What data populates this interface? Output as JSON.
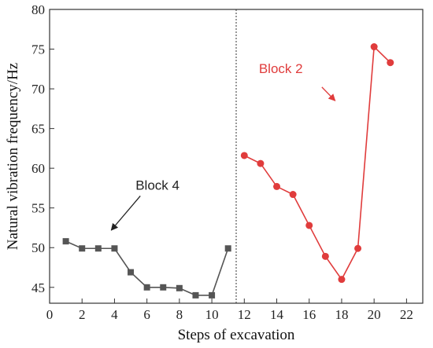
{
  "chart_data": {
    "type": "line",
    "xlabel": "Steps of excavation",
    "ylabel": "Natural vibration frequency/Hz",
    "xlim": [
      0,
      23
    ],
    "ylim": [
      43,
      80
    ],
    "xticks": [
      0,
      2,
      4,
      6,
      8,
      10,
      12,
      14,
      16,
      18,
      20,
      22
    ],
    "yticks": [
      45,
      50,
      55,
      60,
      65,
      70,
      75,
      80
    ],
    "divider_x": 11.5,
    "grid": false,
    "series": [
      {
        "name": "Block 4",
        "color": "#555555",
        "marker": "square",
        "x": [
          1,
          2,
          3,
          4,
          5,
          6,
          7,
          8,
          9,
          10,
          11
        ],
        "y": [
          50.8,
          49.9,
          49.9,
          49.9,
          46.9,
          45.0,
          45.0,
          44.9,
          44.0,
          44.0,
          49.9
        ]
      },
      {
        "name": "Block 2",
        "color": "#e03c3c",
        "marker": "circle",
        "x": [
          12,
          13,
          14,
          15,
          16,
          17,
          18,
          19,
          20,
          21
        ],
        "y": [
          61.6,
          60.6,
          57.7,
          56.7,
          52.8,
          48.9,
          46.0,
          49.9,
          75.3,
          73.3
        ]
      }
    ],
    "annotations": [
      {
        "text": "Block 4",
        "color": "#222222",
        "x": 5.3,
        "y": 57.3,
        "arrow_to": [
          3.8,
          52.2
        ]
      },
      {
        "text": "Block 2",
        "color": "#e03c3c",
        "x": 12.9,
        "y": 72.0,
        "arrow_to": [
          17.6,
          68.5
        ]
      }
    ]
  }
}
